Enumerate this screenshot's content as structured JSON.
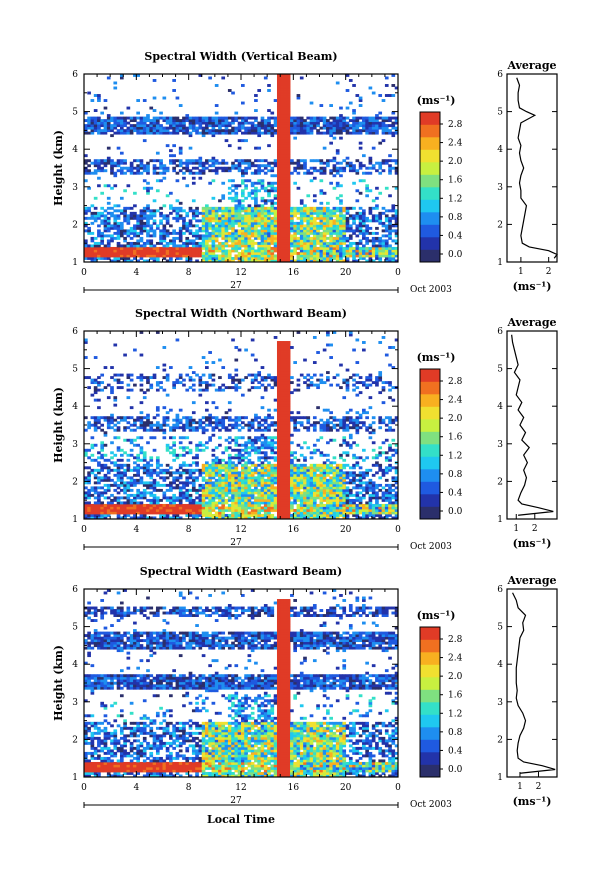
{
  "figure": {
    "date_label": "Oct 2003",
    "day_label": "27",
    "xlabel": "Local Time",
    "ylabel": "Height (km)",
    "profile_title": "Average",
    "profile_xlabel": "(ms⁻¹)",
    "colorbar_unit": "(ms⁻¹)",
    "colorbar_ticks": [
      "0.0",
      "0.4",
      "0.8",
      "1.2",
      "1.6",
      "2.0",
      "2.4",
      "2.8"
    ],
    "colorbar_colors": [
      "#2b2f6b",
      "#2233aa",
      "#1f5ae0",
      "#1e8ef0",
      "#1fc8f0",
      "#33e0c8",
      "#7fe080",
      "#c8f040",
      "#f0e030",
      "#f8b020",
      "#f07020",
      "#e03b26"
    ]
  },
  "chart_data": [
    {
      "type": "heatmap",
      "title": "Spectral Width (Vertical Beam)",
      "xlim": [
        0,
        24
      ],
      "ylim": [
        1,
        6
      ],
      "x_ticks": [
        "0",
        "4",
        "8",
        "12",
        "16",
        "20",
        "0"
      ],
      "y_ticks": [
        "1",
        "2",
        "3",
        "4",
        "5",
        "6"
      ],
      "clim": [
        0,
        3
      ],
      "profile": {
        "xlim": [
          0.5,
          2.3
        ],
        "x_ticks": [
          "1",
          "2"
        ],
        "height": [
          1.1,
          1.2,
          1.3,
          1.4,
          1.5,
          1.7,
          1.9,
          2.1,
          2.3,
          2.5,
          2.7,
          2.9,
          3.1,
          3.3,
          3.5,
          3.7,
          3.9,
          4.1,
          4.3,
          4.5,
          4.7,
          4.9,
          5.0,
          5.1,
          5.3,
          5.5,
          5.7,
          5.9
        ],
        "values": [
          2.2,
          2.3,
          2.0,
          1.3,
          1.05,
          1.0,
          1.05,
          1.1,
          1.15,
          1.2,
          1.0,
          1.0,
          0.95,
          1.0,
          1.1,
          1.0,
          0.95,
          1.0,
          0.9,
          0.95,
          1.0,
          1.5,
          1.2,
          0.95,
          0.9,
          0.9,
          0.95,
          0.85
        ]
      }
    },
    {
      "type": "heatmap",
      "title": "Spectral Width (Northward Beam)",
      "xlim": [
        0,
        24
      ],
      "ylim": [
        1,
        6
      ],
      "x_ticks": [
        "0",
        "4",
        "8",
        "12",
        "16",
        "20",
        "0"
      ],
      "y_ticks": [
        "1",
        "2",
        "3",
        "4",
        "5",
        "6"
      ],
      "clim": [
        0,
        3
      ],
      "profile": {
        "xlim": [
          0.5,
          3.2
        ],
        "x_ticks": [
          "1",
          "2"
        ],
        "height": [
          1.1,
          1.2,
          1.3,
          1.4,
          1.5,
          1.7,
          1.9,
          2.1,
          2.3,
          2.5,
          2.7,
          2.9,
          3.1,
          3.3,
          3.5,
          3.7,
          3.9,
          4.1,
          4.3,
          4.5,
          4.7,
          4.9,
          5.1,
          5.3,
          5.5,
          5.7,
          5.9
        ],
        "values": [
          1.1,
          3.0,
          2.2,
          1.3,
          1.1,
          1.25,
          1.45,
          1.55,
          1.4,
          1.6,
          1.4,
          1.7,
          1.3,
          1.5,
          1.2,
          1.4,
          1.1,
          1.3,
          1.0,
          1.1,
          1.2,
          0.9,
          1.1,
          1.0,
          0.9,
          0.8,
          0.75
        ]
      }
    },
    {
      "type": "heatmap",
      "title": "Spectral Width (Eastward Beam)",
      "xlim": [
        0,
        24
      ],
      "ylim": [
        1,
        6
      ],
      "x_ticks": [
        "0",
        "4",
        "8",
        "12",
        "16",
        "20",
        "0"
      ],
      "y_ticks": [
        "1",
        "2",
        "3",
        "4",
        "5",
        "6"
      ],
      "clim": [
        0,
        3
      ],
      "profile": {
        "xlim": [
          0.3,
          3.0
        ],
        "x_ticks": [
          "1",
          "2"
        ],
        "height": [
          1.1,
          1.2,
          1.3,
          1.4,
          1.5,
          1.7,
          1.9,
          2.1,
          2.3,
          2.5,
          2.7,
          2.9,
          3.1,
          3.3,
          3.5,
          3.7,
          3.9,
          4.1,
          4.3,
          4.5,
          4.7,
          4.9,
          5.1,
          5.3,
          5.5,
          5.7,
          5.9
        ],
        "values": [
          1.0,
          2.9,
          2.2,
          1.2,
          0.9,
          0.85,
          0.9,
          1.0,
          1.2,
          1.3,
          1.15,
          0.9,
          0.8,
          0.85,
          0.8,
          0.8,
          0.8,
          0.85,
          0.9,
          0.95,
          1.0,
          1.2,
          1.15,
          1.3,
          0.9,
          0.8,
          0.6
        ]
      }
    }
  ]
}
